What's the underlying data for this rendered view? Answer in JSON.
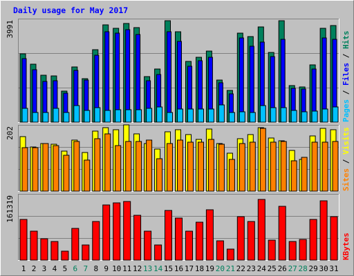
{
  "chart_data": {
    "type": "bar",
    "title": "Daily usage for May 2017",
    "colors": {
      "background": "#c0c0c0",
      "title": "#0000ff",
      "hits": "#00805c",
      "files": "#0000ff",
      "pages": "#00c0ff",
      "visits": "#ffff00",
      "sites": "#ff8000",
      "kbytes": "#ff0000",
      "weekend_label": "#00805c",
      "weekday_label": "#000000"
    },
    "days": [
      "1",
      "2",
      "3",
      "4",
      "5",
      "6",
      "7",
      "8",
      "9",
      "10",
      "11",
      "12",
      "13",
      "14",
      "15",
      "16",
      "17",
      "18",
      "19",
      "20",
      "21",
      "22",
      "23",
      "24",
      "25",
      "26",
      "27",
      "28",
      "29",
      "30",
      "31"
    ],
    "weekend_days": [
      "6",
      "7",
      "13",
      "14",
      "20",
      "21",
      "27",
      "28"
    ],
    "panels": [
      {
        "id": "usage",
        "max_label": "3991",
        "ymax": 3991,
        "legend": [
          {
            "text": "Pages",
            "color": "#00c0ff"
          },
          {
            "text": " / ",
            "color": "#000000"
          },
          {
            "text": "Files",
            "color": "#0000ff"
          },
          {
            "text": " / ",
            "color": "#000000"
          },
          {
            "text": "Hits",
            "color": "#00805c"
          }
        ],
        "series": [
          {
            "name": "Hits",
            "color": "#00805c",
            "values": [
              2700,
              2290,
              1850,
              1810,
              1230,
              2180,
              1720,
              2850,
              3830,
              3690,
              3880,
              3710,
              1780,
              2090,
              3990,
              3560,
              2400,
              2560,
              2790,
              1650,
              1260,
              3500,
              3380,
              3760,
              2730,
              4000,
              1440,
              1380,
              2260,
              3700,
              3810
            ]
          },
          {
            "name": "Files",
            "color": "#0000ff",
            "values": [
              2500,
              2060,
              1610,
              1620,
              1140,
              2040,
              1660,
              2620,
              3560,
              3510,
              3630,
              3450,
              1620,
              1870,
              3560,
              3170,
              2200,
              2420,
              2550,
              1550,
              1120,
              3310,
              2990,
              3140,
              2580,
              3250,
              1340,
              1290,
              2100,
              3300,
              3250
            ]
          },
          {
            "name": "Pages",
            "color": "#00c0ff",
            "values": [
              540,
              390,
              390,
              530,
              370,
              650,
              460,
              570,
              450,
              480,
              490,
              480,
              550,
              600,
              390,
              510,
              510,
              510,
              520,
              670,
              370,
              410,
              390,
              650,
              560,
              570,
              470,
              400,
              430,
              520,
              590
            ]
          }
        ]
      },
      {
        "id": "visitors",
        "max_label": "202",
        "ymax": 202,
        "legend": [
          {
            "text": "Sites",
            "color": "#ff8000"
          },
          {
            "text": " / ",
            "color": "#000000"
          },
          {
            "text": "Visits",
            "color": "#ffff00"
          }
        ],
        "series": [
          {
            "name": "Visits",
            "color": "#ffff00",
            "values": [
              172,
              140,
              149,
              147,
              126,
              160,
              122,
              188,
              200,
              193,
              209,
              181,
              150,
              133,
              187,
              194,
              179,
              163,
              196,
              149,
              119,
              165,
              178,
              199,
              168,
              159,
              128,
              100,
              174,
              197,
              193
            ]
          },
          {
            "name": "Sites",
            "color": "#ff8000",
            "values": [
              137,
              137,
              149,
              144,
              113,
              157,
              98,
              166,
              180,
              143,
              157,
              157,
              160,
              103,
              149,
              160,
              155,
              155,
              162,
              147,
              99,
              149,
              154,
              197,
              154,
              156,
              95,
              106,
              155,
              155,
              157
            ]
          }
        ]
      },
      {
        "id": "kbytes",
        "max_label": "161319",
        "ymax": 161319,
        "legend": [
          {
            "text": "KBytes",
            "color": "#ff0000"
          }
        ],
        "series": [
          {
            "name": "KBytes",
            "color": "#ff0000",
            "values": [
              102000,
              73000,
              53000,
              46000,
              22000,
              79000,
              39000,
              98000,
              138000,
              144000,
              148000,
              112000,
              72000,
              39000,
              125000,
              106000,
              73000,
              95000,
              126000,
              48000,
              27000,
              110000,
              98000,
              153000,
              51000,
              136000,
              47000,
              52000,
              102000,
              149000,
              109000
            ]
          }
        ]
      }
    ]
  }
}
